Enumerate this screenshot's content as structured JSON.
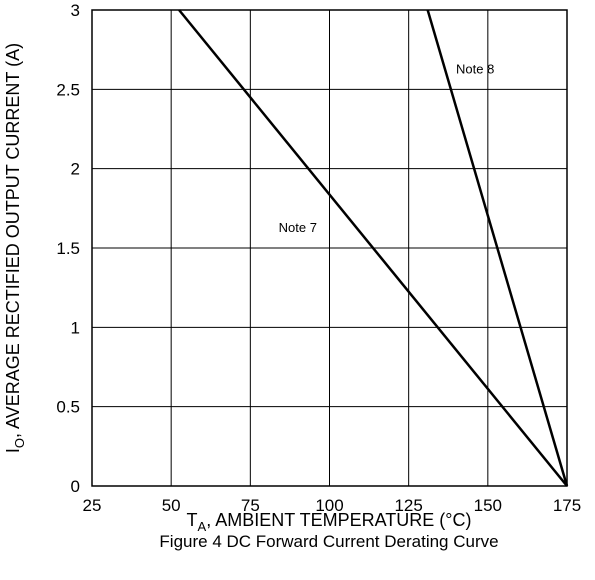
{
  "chart_data": {
    "type": "line",
    "x_axis": {
      "title_main": "T",
      "title_sub": "A",
      "title_rest": ", AMBIENT TEMPERATURE (°C)",
      "range": [
        25,
        175
      ],
      "ticks": [
        25,
        50,
        75,
        100,
        125,
        150,
        175
      ]
    },
    "y_axis": {
      "title_main": "I",
      "title_sub": "O",
      "title_rest": ", AVERAGE RECTIFIED OUTPUT CURRENT (A)",
      "range": [
        0,
        3
      ],
      "ticks": [
        0,
        0.5,
        1,
        1.5,
        2,
        2.5,
        3
      ],
      "tick_labels": [
        "0",
        "0.5",
        "1",
        "1.5",
        "2",
        "2.5",
        "3"
      ]
    },
    "grid": true,
    "series": [
      {
        "name": "Note 7",
        "x": [
          52.5,
          175
        ],
        "y": [
          3,
          0
        ]
      },
      {
        "name": "Note 8",
        "x": [
          131,
          175
        ],
        "y": [
          3,
          0
        ]
      }
    ],
    "annotations": [
      {
        "text": "Note 7",
        "x": 90,
        "y": 1.6
      },
      {
        "text": "Note 8",
        "x": 146,
        "y": 2.6
      }
    ],
    "caption": "Figure 4 DC Forward Current Derating Curve"
  }
}
